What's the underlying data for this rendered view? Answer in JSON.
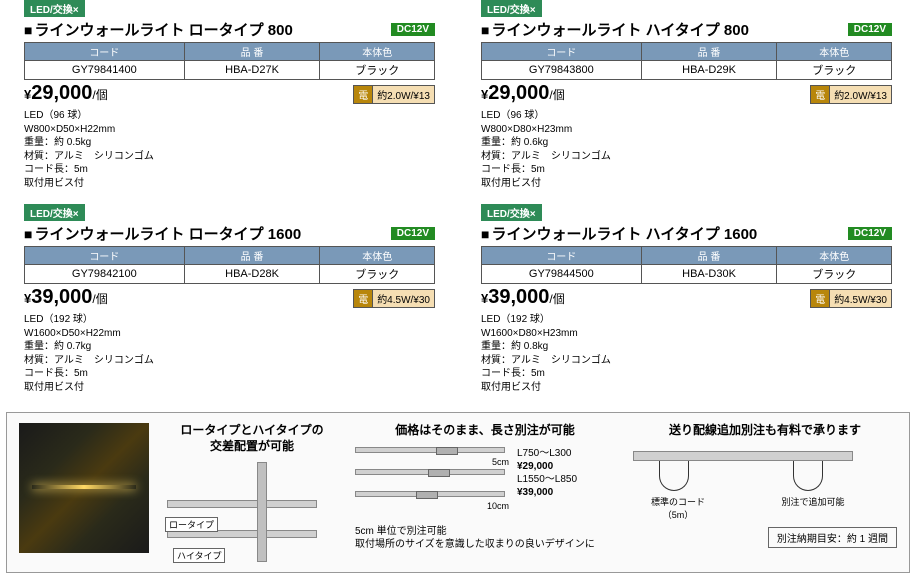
{
  "products": [
    {
      "led_badge": "LED/交換×",
      "title": "ラインウォールライト ロータイプ 800",
      "dc_badge": "DC12V",
      "headers": [
        "コード",
        "品 番",
        "本体色"
      ],
      "row": [
        "GY79841400",
        "HBA-D27K",
        "ブラック"
      ],
      "price_yen": "¥",
      "price_val": "29,000",
      "price_unit": "/個",
      "watt_l": "電",
      "watt_r": "約2.0W/¥13",
      "details": "LED（96 球）\nW800×D50×H22mm\n重量：約 0.5kg\n材質：アルミ　シリコンゴム\nコード長：5m\n取付用ビス付"
    },
    {
      "led_badge": "LED/交換×",
      "title": "ラインウォールライト ハイタイプ 800",
      "dc_badge": "DC12V",
      "headers": [
        "コード",
        "品 番",
        "本体色"
      ],
      "row": [
        "GY79843800",
        "HBA-D29K",
        "ブラック"
      ],
      "price_yen": "¥",
      "price_val": "29,000",
      "price_unit": "/個",
      "watt_l": "電",
      "watt_r": "約2.0W/¥13",
      "details": "LED（96 球）\nW800×D80×H23mm\n重量：約 0.6kg\n材質：アルミ　シリコンゴム\nコード長：5m\n取付用ビス付"
    },
    {
      "led_badge": "LED/交換×",
      "title": "ラインウォールライト ロータイプ 1600",
      "dc_badge": "DC12V",
      "headers": [
        "コード",
        "品 番",
        "本体色"
      ],
      "row": [
        "GY79842100",
        "HBA-D28K",
        "ブラック"
      ],
      "price_yen": "¥",
      "price_val": "39,000",
      "price_unit": "/個",
      "watt_l": "電",
      "watt_r": "約4.5W/¥30",
      "details": "LED（192 球）\nW1600×D50×H22mm\n重量：約 0.7kg\n材質：アルミ　シリコンゴム\nコード長：5m\n取付用ビス付"
    },
    {
      "led_badge": "LED/交換×",
      "title": "ラインウォールライト ハイタイプ 1600",
      "dc_badge": "DC12V",
      "headers": [
        "コード",
        "品 番",
        "本体色"
      ],
      "row": [
        "GY79844500",
        "HBA-D30K",
        "ブラック"
      ],
      "price_yen": "¥",
      "price_val": "39,000",
      "price_unit": "/個",
      "watt_l": "電",
      "watt_r": "約4.5W/¥30",
      "details": "LED（192 球）\nW1600×D80×H23mm\n重量：約 0.8kg\n材質：アルミ　シリコンゴム\nコード長：5m\n取付用ビス付"
    }
  ],
  "bottom": {
    "col1_head": "ロータイプとハイタイプの\n交差配置が可能",
    "col1_label_low": "ロータイプ",
    "col1_label_high": "ハイタイプ",
    "col2_head": "価格はそのまま、長さ別注が可能",
    "col2_dim1": "5cm",
    "col2_dim2": "10cm",
    "col2_price1_range": "L750～L300",
    "col2_price1_val": "¥29,000",
    "col2_price2_range": "L1550～L850",
    "col2_price2_val": "¥39,000",
    "col2_note": "5cm 単位で別注可能\n取付場所のサイズを意識した収まりの良いデザインに",
    "col3_head": "送り配線追加別注も有料で承ります",
    "col3_label1": "標準のコード\n（5m）",
    "col3_label2": "別注で追加可能",
    "col3_box": "別注納期目安：約 1 週間"
  }
}
